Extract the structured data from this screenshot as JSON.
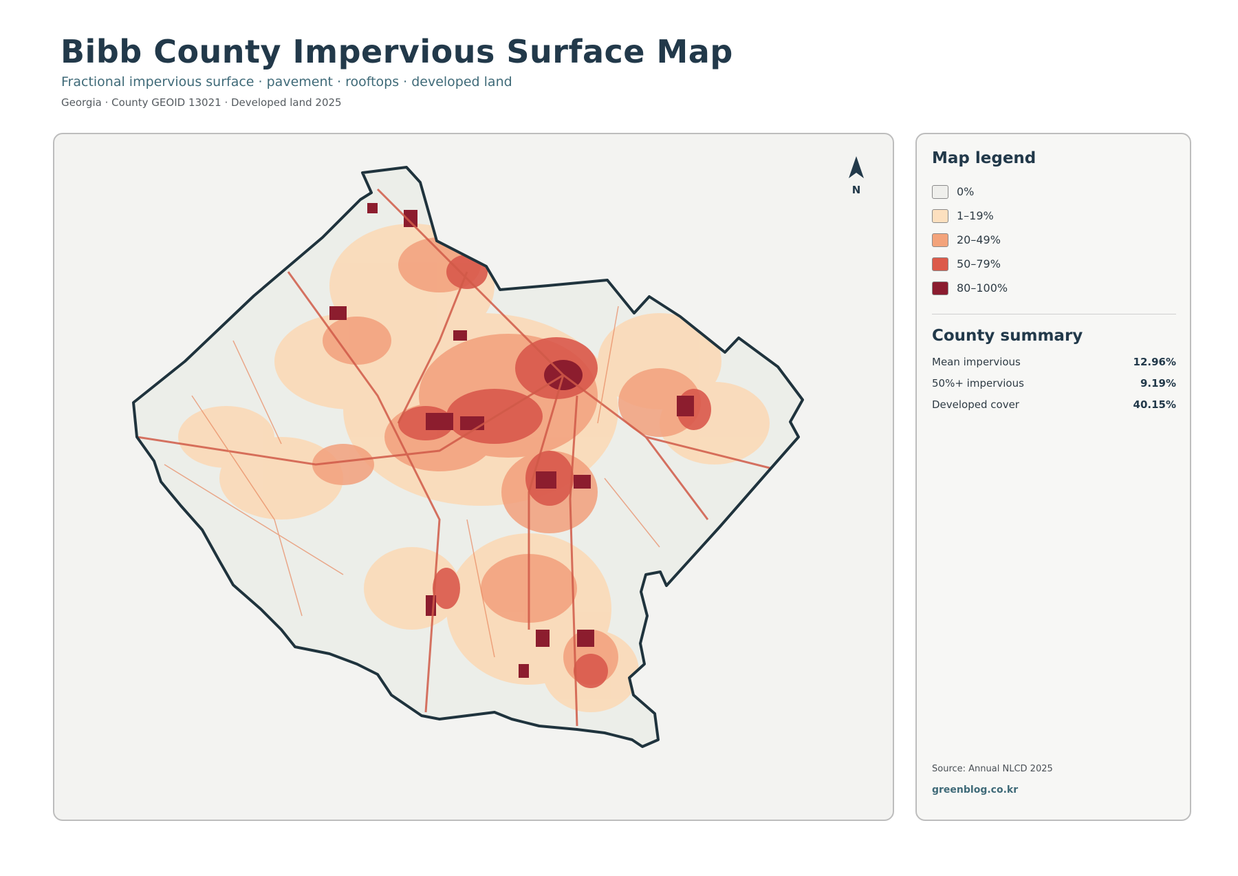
{
  "header": {
    "title": "Bibb County Impervious Surface Map",
    "subtitle": "Fractional impervious surface · pavement · rooftops · developed land",
    "meta": "Georgia · County GEOID 13021 · Developed land 2025"
  },
  "map": {
    "north_label": "N",
    "colors": {
      "background": "#eceee9",
      "border": "#1f333d",
      "low": "#fcd8b4",
      "mid": "#f2a07c",
      "high": "#d9594c",
      "veryhigh": "#8c1d2e"
    }
  },
  "legend": {
    "title": "Map legend",
    "items": [
      {
        "label": "0%",
        "color": "#efefec"
      },
      {
        "label": "1–19%",
        "color": "#fde0bf"
      },
      {
        "label": "20–49%",
        "color": "#f3a37b"
      },
      {
        "label": "50–79%",
        "color": "#dc5a4a"
      },
      {
        "label": "80–100%",
        "color": "#8b1c2f"
      }
    ]
  },
  "summary": {
    "title": "County summary",
    "rows": [
      {
        "label": "Mean impervious",
        "value": "12.96%"
      },
      {
        "label": "50%+ impervious",
        "value": "9.19%"
      },
      {
        "label": "Developed cover",
        "value": "40.15%"
      }
    ]
  },
  "footer": {
    "source": "Source: Annual NLCD 2025",
    "brand": "greenblog.co.kr"
  }
}
